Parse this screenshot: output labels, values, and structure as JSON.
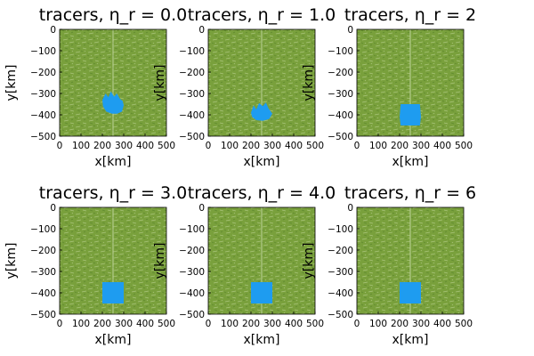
{
  "colors": {
    "background": "#ffffff",
    "matrix": "#79a03c",
    "matrix_light": "#a9c47a",
    "matrix_dark": "#5f8a2e",
    "blob": "#1e9cf0",
    "axis": "#000000"
  },
  "chart_data": [
    {
      "type": "scatter",
      "title": "tracers, η_r = 0.0",
      "xlabel": "x[km]",
      "ylabel": "y[km]",
      "xlim": [
        0,
        500
      ],
      "ylim": [
        -500,
        0
      ],
      "xticks": [
        0,
        100,
        200,
        300,
        400,
        500
      ],
      "xtick_labels": [
        "0",
        "100",
        "200",
        "300",
        "400",
        "500"
      ],
      "yticks": [
        0,
        -100,
        -200,
        -300,
        -400,
        -500
      ],
      "ytick_labels": [
        "0",
        "−100",
        "−200",
        "−300",
        "−400",
        "−500"
      ],
      "grid": false,
      "legend": "none",
      "series": [
        {
          "role": "matrix",
          "color": "#79a03c",
          "x_range": [
            0,
            500
          ],
          "y_range": [
            -500,
            0
          ]
        },
        {
          "role": "blob",
          "color": "#1e9cf0",
          "shape": "deformed",
          "outline": [
            [
              200,
              -330
            ],
            [
              215,
              -300
            ],
            [
              228,
              -318
            ],
            [
              240,
              -290
            ],
            [
              255,
              -315
            ],
            [
              268,
              -300
            ],
            [
              282,
              -325
            ],
            [
              295,
              -335
            ],
            [
              300,
              -355
            ],
            [
              292,
              -385
            ],
            [
              270,
              -395
            ],
            [
              245,
              -395
            ],
            [
              218,
              -385
            ],
            [
              203,
              -360
            ]
          ]
        }
      ]
    },
    {
      "type": "scatter",
      "title": "tracers, η_r = 1.0",
      "xlabel": "x[km]",
      "ylabel": "y[km]",
      "xlim": [
        0,
        500
      ],
      "ylim": [
        -500,
        0
      ],
      "xticks": [
        0,
        100,
        200,
        300,
        400,
        500
      ],
      "xtick_labels": [
        "0",
        "100",
        "200",
        "300",
        "400",
        "500"
      ],
      "yticks": [
        0,
        -100,
        -200,
        -300,
        -400,
        -500
      ],
      "ytick_labels": [
        "0",
        "−100",
        "−200",
        "−300",
        "−400",
        "−500"
      ],
      "grid": false,
      "legend": "none",
      "series": [
        {
          "role": "matrix",
          "color": "#79a03c",
          "x_range": [
            0,
            500
          ],
          "y_range": [
            -500,
            0
          ]
        },
        {
          "role": "blob",
          "color": "#1e9cf0",
          "shape": "deformed",
          "outline": [
            [
              200,
              -390
            ],
            [
              212,
              -355
            ],
            [
              225,
              -375
            ],
            [
              238,
              -345
            ],
            [
              255,
              -360
            ],
            [
              270,
              -342
            ],
            [
              282,
              -370
            ],
            [
              300,
              -395
            ],
            [
              285,
              -420
            ],
            [
              255,
              -428
            ],
            [
              225,
              -425
            ],
            [
              205,
              -410
            ]
          ]
        }
      ]
    },
    {
      "type": "scatter",
      "title": "tracers, η_r = 2",
      "xlabel": "x[km]",
      "ylabel": "y[km]",
      "xlim": [
        0,
        500
      ],
      "ylim": [
        -500,
        0
      ],
      "xticks": [
        0,
        100,
        200,
        300,
        400,
        500
      ],
      "xtick_labels": [
        "0",
        "100",
        "200",
        "300",
        "400",
        "500"
      ],
      "yticks": [
        0,
        -100,
        -200,
        -300,
        -400,
        -500
      ],
      "ytick_labels": [
        "0",
        "−100",
        "−200",
        "−300",
        "−400",
        "−500"
      ],
      "grid": false,
      "legend": "none",
      "series": [
        {
          "role": "matrix",
          "color": "#79a03c",
          "x_range": [
            0,
            500
          ],
          "y_range": [
            -500,
            0
          ]
        },
        {
          "role": "blob",
          "color": "#1e9cf0",
          "shape": "deformed",
          "outline": [
            [
              205,
              -350
            ],
            [
              295,
              -350
            ],
            [
              300,
              -410
            ],
            [
              295,
              -450
            ],
            [
              205,
              -450
            ],
            [
              200,
              -410
            ]
          ]
        }
      ]
    },
    {
      "type": "scatter",
      "title": "tracers, η_r = 3.0",
      "xlabel": "x[km]",
      "ylabel": "y[km]",
      "xlim": [
        0,
        500
      ],
      "ylim": [
        -500,
        0
      ],
      "xticks": [
        0,
        100,
        200,
        300,
        400,
        500
      ],
      "xtick_labels": [
        "0",
        "100",
        "200",
        "300",
        "400",
        "500"
      ],
      "yticks": [
        0,
        -100,
        -200,
        -300,
        -400,
        -500
      ],
      "ytick_labels": [
        "0",
        "−100",
        "−200",
        "−300",
        "−400",
        "−500"
      ],
      "grid": false,
      "legend": "none",
      "series": [
        {
          "role": "matrix",
          "color": "#79a03c",
          "x_range": [
            0,
            500
          ],
          "y_range": [
            -500,
            0
          ]
        },
        {
          "role": "blob",
          "color": "#1e9cf0",
          "shape": "square",
          "x_range": [
            200,
            300
          ],
          "y_range": [
            -450,
            -350
          ]
        }
      ]
    },
    {
      "type": "scatter",
      "title": "tracers, η_r = 4.0",
      "xlabel": "x[km]",
      "ylabel": "y[km]",
      "xlim": [
        0,
        500
      ],
      "ylim": [
        -500,
        0
      ],
      "xticks": [
        0,
        100,
        200,
        300,
        400,
        500
      ],
      "xtick_labels": [
        "0",
        "100",
        "200",
        "300",
        "400",
        "500"
      ],
      "yticks": [
        0,
        -100,
        -200,
        -300,
        -400,
        -500
      ],
      "ytick_labels": [
        "0",
        "−100",
        "−200",
        "−300",
        "−400",
        "−500"
      ],
      "grid": false,
      "legend": "none",
      "series": [
        {
          "role": "matrix",
          "color": "#79a03c",
          "x_range": [
            0,
            500
          ],
          "y_range": [
            -500,
            0
          ]
        },
        {
          "role": "blob",
          "color": "#1e9cf0",
          "shape": "square",
          "x_range": [
            200,
            300
          ],
          "y_range": [
            -450,
            -350
          ]
        }
      ]
    },
    {
      "type": "scatter",
      "title": "tracers, η_r = 6",
      "xlabel": "x[km]",
      "ylabel": "y[km]",
      "xlim": [
        0,
        500
      ],
      "ylim": [
        -500,
        0
      ],
      "xticks": [
        0,
        100,
        200,
        300,
        400,
        500
      ],
      "xtick_labels": [
        "0",
        "100",
        "200",
        "300",
        "400",
        "500"
      ],
      "yticks": [
        0,
        -100,
        -200,
        -300,
        -400,
        -500
      ],
      "ytick_labels": [
        "0",
        "−100",
        "−200",
        "−300",
        "−400",
        "−500"
      ],
      "grid": false,
      "legend": "none",
      "series": [
        {
          "role": "matrix",
          "color": "#79a03c",
          "x_range": [
            0,
            500
          ],
          "y_range": [
            -500,
            0
          ]
        },
        {
          "role": "blob",
          "color": "#1e9cf0",
          "shape": "square",
          "x_range": [
            200,
            300
          ],
          "y_range": [
            -450,
            -350
          ]
        }
      ]
    }
  ]
}
